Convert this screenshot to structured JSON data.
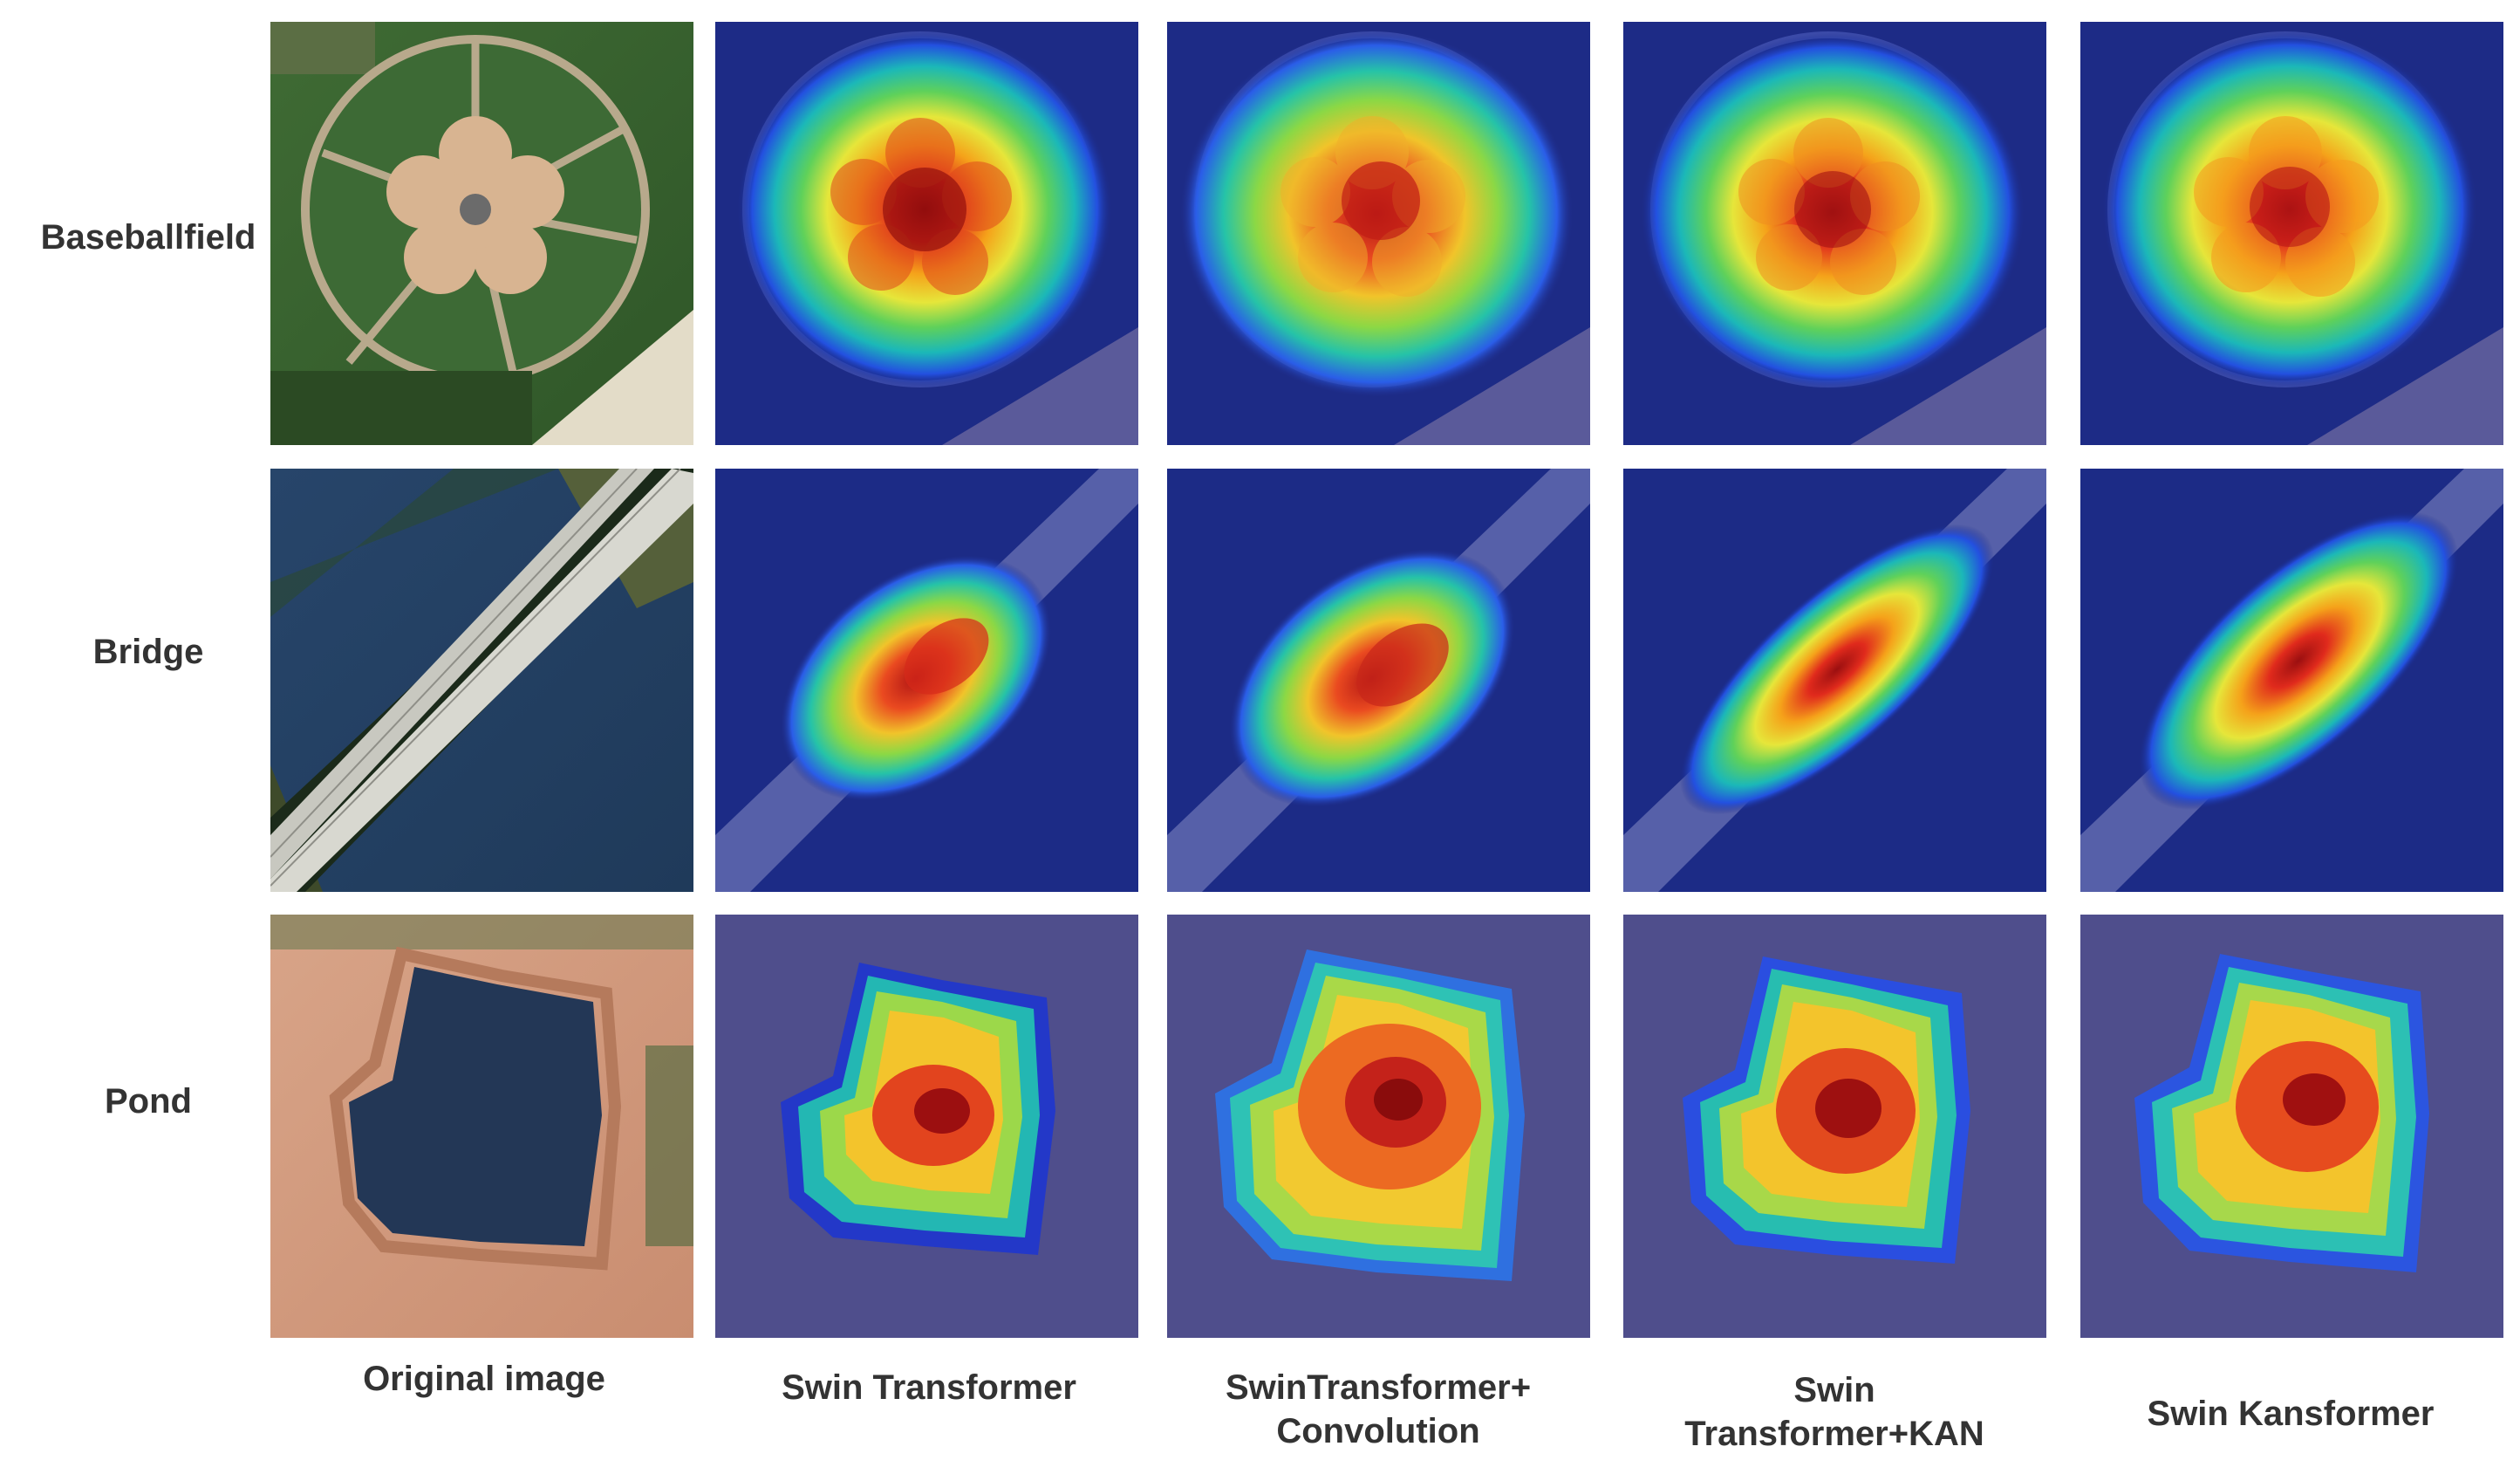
{
  "rows": [
    {
      "label": "Baseballfield"
    },
    {
      "label": "Bridge"
    },
    {
      "label": "Pond"
    }
  ],
  "columns": [
    {
      "lines": [
        "Original image"
      ]
    },
    {
      "lines": [
        "Swin Transformer"
      ]
    },
    {
      "lines": [
        "SwinTransformer+",
        "Convolution"
      ]
    },
    {
      "lines": [
        "Swin",
        "Transformer+KAN"
      ]
    },
    {
      "lines": [
        "Swin Kansformer"
      ]
    }
  ],
  "colors": {
    "text": "#333333",
    "heat_background": "#1a2a8a",
    "heat_hot": "#c81e1e"
  }
}
